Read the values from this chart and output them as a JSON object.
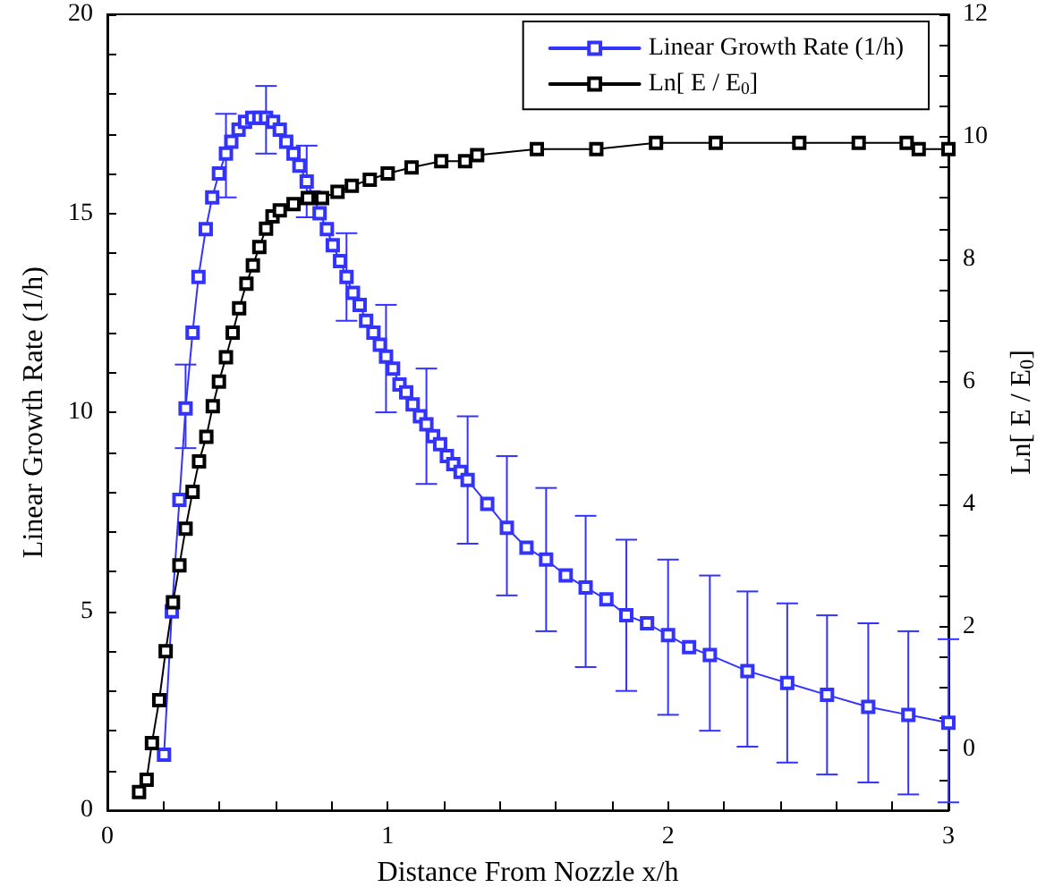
{
  "chart_data": {
    "type": "line",
    "xlabel": "Distance From Nozzle x/h",
    "ylabel": "Linear Growth Rate (1/h)",
    "y2label": "Ln[ E / E$_{0}$]",
    "legend": "top right",
    "marker": "square",
    "line_style": "solid",
    "xlim": [
      0,
      3
    ],
    "xticks": [
      0,
      {
        "value": 0.2,
        "label": null
      },
      {
        "value": 0.4,
        "label": null
      },
      {
        "value": 0.6,
        "label": null
      },
      {
        "value": 0.8,
        "label": null
      },
      1,
      {
        "value": 1.2,
        "label": null
      },
      {
        "value": 1.4,
        "label": null
      },
      {
        "value": 1.6,
        "label": null
      },
      {
        "value": 1.8,
        "label": null
      },
      2,
      {
        "value": 2.2,
        "label": null
      },
      {
        "value": 2.4,
        "label": null
      },
      {
        "value": 2.6,
        "label": null
      },
      {
        "value": 2.8,
        "label": null
      },
      3
    ],
    "ylim": [
      0,
      20
    ],
    "yticks": [
      0,
      {
        "value": 1,
        "label": null
      },
      {
        "value": 2,
        "label": null
      },
      {
        "value": 3,
        "label": null
      },
      {
        "value": 4,
        "label": null
      },
      5,
      {
        "value": 6,
        "label": null
      },
      {
        "value": 7,
        "label": null
      },
      {
        "value": 8,
        "label": null
      },
      {
        "value": 9,
        "label": null
      },
      10,
      {
        "value": 11,
        "label": null
      },
      {
        "value": 12,
        "label": null
      },
      {
        "value": 13,
        "label": null
      },
      {
        "value": 14,
        "label": null
      },
      15,
      {
        "value": 16,
        "label": null
      },
      {
        "value": 17,
        "label": null
      },
      {
        "value": 18,
        "label": null
      },
      {
        "value": 19,
        "label": null
      },
      20
    ],
    "y2lim": [
      -1,
      12
    ],
    "y2ticks": [
      {
        "value": -0.5,
        "label": null
      },
      0,
      {
        "value": 0.5,
        "label": null
      },
      {
        "value": 1,
        "label": null
      },
      {
        "value": 1.5,
        "label": null
      },
      2,
      {
        "value": 2.5,
        "label": null
      },
      {
        "value": 3,
        "label": null
      },
      {
        "value": 3.5,
        "label": null
      },
      4,
      {
        "value": 4.5,
        "label": null
      },
      {
        "value": 5,
        "label": null
      },
      {
        "value": 5.5,
        "label": null
      },
      6,
      {
        "value": 6.5,
        "label": null
      },
      {
        "value": 7,
        "label": null
      },
      {
        "value": 7.5,
        "label": null
      },
      8,
      {
        "value": 8.5,
        "label": null
      },
      {
        "value": 9,
        "label": null
      },
      {
        "value": 9.5,
        "label": null
      },
      10,
      {
        "value": 10.5,
        "label": null
      },
      {
        "value": 11,
        "label": null
      },
      {
        "value": 11.5,
        "label": null
      },
      12
    ],
    "series": [
      {
        "name": "Linear Growth Rate (1/h)",
        "color": "#3333ff",
        "x": [
          0.202,
          0.23,
          0.257,
          0.279,
          0.304,
          0.325,
          0.351,
          0.374,
          0.398,
          0.423,
          0.442,
          0.468,
          0.491,
          0.517,
          0.542,
          0.566,
          0.591,
          0.615,
          0.638,
          0.664,
          0.685,
          0.711,
          0.736,
          0.757,
          0.783,
          0.804,
          0.83,
          0.853,
          0.876,
          0.9,
          0.923,
          0.949,
          0.972,
          0.994,
          1.019,
          1.042,
          1.066,
          1.089,
          1.115,
          1.138,
          1.162,
          1.187,
          1.211,
          1.234,
          1.26,
          1.285,
          1.355,
          1.425,
          1.495,
          1.565,
          1.635,
          1.706,
          1.78,
          1.851,
          1.925,
          2.0,
          2.075,
          2.149,
          2.283,
          2.425,
          2.567,
          2.714,
          2.857,
          3.0
        ],
        "values": [
          1.4,
          5.0,
          7.8,
          10.1,
          12.0,
          13.4,
          14.6,
          15.4,
          16.0,
          16.5,
          16.8,
          17.1,
          17.3,
          17.4,
          17.4,
          17.4,
          17.3,
          17.1,
          16.8,
          16.5,
          16.2,
          15.8,
          15.4,
          15.0,
          14.6,
          14.2,
          13.8,
          13.4,
          13.0,
          12.7,
          12.3,
          12.0,
          11.7,
          11.4,
          11.1,
          10.7,
          10.5,
          10.2,
          9.9,
          9.7,
          9.4,
          9.2,
          8.9,
          8.7,
          8.5,
          8.3,
          7.7,
          7.1,
          6.6,
          6.3,
          5.9,
          5.6,
          5.3,
          4.9,
          4.7,
          4.4,
          4.1,
          3.9,
          3.5,
          3.2,
          2.9,
          2.6,
          2.4,
          2.2
        ],
        "errors": [
          null,
          null,
          null,
          [
            9.1,
            11.2
          ],
          null,
          null,
          null,
          null,
          null,
          [
            15.4,
            17.5
          ],
          null,
          null,
          null,
          null,
          null,
          [
            16.5,
            18.2
          ],
          null,
          null,
          null,
          null,
          null,
          [
            14.9,
            16.7
          ],
          null,
          null,
          null,
          null,
          null,
          [
            12.3,
            14.5
          ],
          null,
          null,
          null,
          null,
          null,
          [
            10.0,
            12.7
          ],
          null,
          null,
          null,
          null,
          null,
          [
            8.2,
            11.1
          ],
          null,
          null,
          null,
          null,
          null,
          [
            6.7,
            9.9
          ],
          null,
          [
            5.4,
            8.9
          ],
          null,
          [
            4.5,
            8.1
          ],
          null,
          [
            3.6,
            7.4
          ],
          null,
          [
            3.0,
            6.8
          ],
          null,
          [
            2.4,
            6.3
          ],
          null,
          [
            2.0,
            5.9
          ],
          [
            1.6,
            5.5
          ],
          [
            1.2,
            5.2
          ],
          [
            0.9,
            4.9
          ],
          [
            0.7,
            4.7
          ],
          [
            0.4,
            4.5
          ],
          [
            0.2,
            4.3
          ]
        ]
      },
      {
        "name": "Ln[ E / E$_{0}$]",
        "color": "#000000",
        "axis": "y2",
        "x": [
          0.113,
          0.14,
          0.159,
          0.185,
          0.208,
          0.234,
          0.257,
          0.279,
          0.304,
          0.327,
          0.353,
          0.376,
          0.398,
          0.423,
          0.447,
          0.47,
          0.496,
          0.519,
          0.542,
          0.566,
          0.589,
          0.615,
          0.664,
          0.715,
          0.766,
          0.821,
          0.872,
          0.936,
          1.0,
          1.085,
          1.191,
          1.276,
          1.319,
          1.532,
          1.744,
          1.957,
          2.17,
          2.468,
          2.68,
          2.851,
          2.894,
          3.0
        ],
        "values": [
          -0.7,
          -0.5,
          0.1,
          0.8,
          1.6,
          2.4,
          3.0,
          3.6,
          4.2,
          4.7,
          5.1,
          5.6,
          6.0,
          6.4,
          6.8,
          7.2,
          7.6,
          7.9,
          8.2,
          8.5,
          8.7,
          8.8,
          8.9,
          9.0,
          9.0,
          9.1,
          9.2,
          9.3,
          9.4,
          9.5,
          9.6,
          9.6,
          9.7,
          9.8,
          9.8,
          9.9,
          9.9,
          9.9,
          9.9,
          9.9,
          9.8,
          9.8
        ]
      }
    ]
  }
}
